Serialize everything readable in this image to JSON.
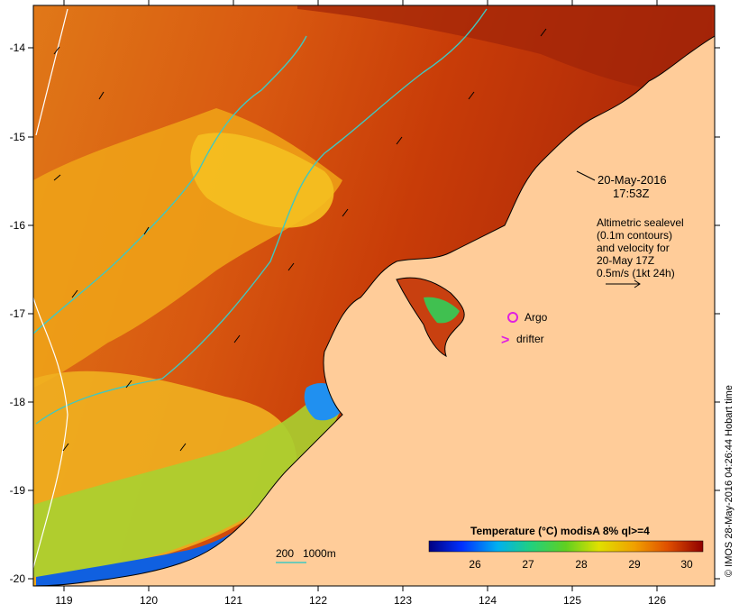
{
  "map": {
    "lon_ticks": [
      "119",
      "120",
      "121",
      "122",
      "123",
      "124",
      "125",
      "126"
    ],
    "lat_ticks": [
      "-14",
      "-15",
      "-16",
      "-17",
      "-18",
      "-19",
      "-20"
    ],
    "lon_range": [
      118.65,
      126.65
    ],
    "lat_range": [
      -13.65,
      -20.1
    ]
  },
  "annotations": {
    "datetime_line1": "20-May-2016",
    "datetime_line2": "17:53Z",
    "sealevel_lines": [
      "Altimetric sealevel",
      "(0.1m contours)",
      "and velocity for",
      "20-May 17Z",
      "0.5m/s (1kt 24h)"
    ]
  },
  "legend": {
    "argo_label": "Argo",
    "drifter_label": "drifter",
    "drifter_symbol": ">",
    "argo_color": "#e020e0",
    "drifter_color": "#e020e0"
  },
  "bathymetry": {
    "label_200": "200",
    "label_1000": "1000m",
    "contour_color": "#40c8c0"
  },
  "colorbar": {
    "title": "Temperature (°C) modisA 8% ql>=4",
    "ticks": [
      "26",
      "27",
      "28",
      "29",
      "30"
    ]
  },
  "credit": "© IMOS 28-May-2016 04:26:44 Hobart time",
  "colors": {
    "land": "#ffcc99",
    "coast": "#000000"
  }
}
